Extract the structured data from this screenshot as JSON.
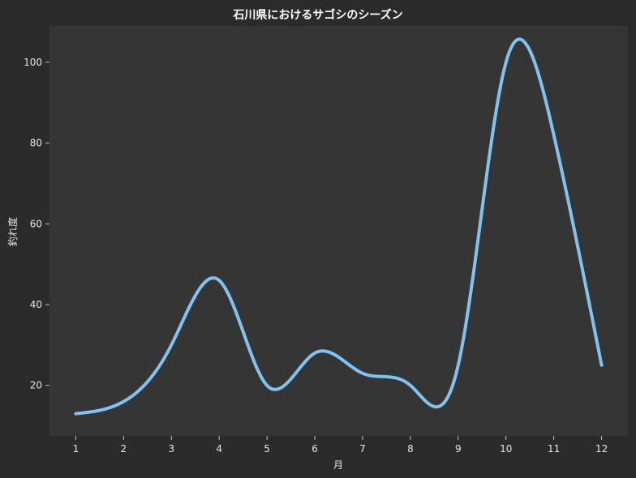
{
  "chart_data": {
    "type": "line",
    "title": "石川県におけるサゴシのシーズン",
    "xlabel": "月",
    "ylabel": "釣れ度",
    "x": [
      1,
      2,
      3,
      4,
      5,
      6,
      7,
      8,
      9,
      10,
      11,
      12
    ],
    "series": [
      {
        "values": [
          13,
          16,
          30,
          46,
          20,
          28,
          23,
          20,
          25,
          100,
          82,
          25
        ],
        "color": "#7ec3f2"
      }
    ],
    "xlim": [
      0.45,
      12.55
    ],
    "ylim": [
      7.5,
      109
    ],
    "xticks": [
      1,
      2,
      3,
      4,
      5,
      6,
      7,
      8,
      9,
      10,
      11,
      12
    ],
    "yticks": [
      20,
      40,
      60,
      80,
      100
    ],
    "grid": false,
    "legend": "none",
    "colors": {
      "background": "#2b2b2b",
      "plot_background": "#353535",
      "text": "#e6e6e6",
      "title": "#ffffff"
    }
  }
}
